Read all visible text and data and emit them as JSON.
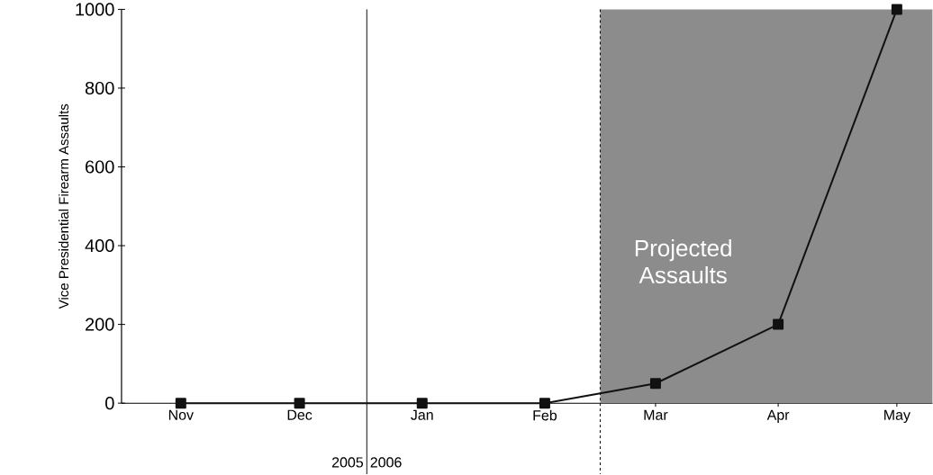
{
  "chart_data": {
    "type": "line",
    "ylabel": "Vice Presidential Firearm Assaults",
    "x": [
      "2005-11-15",
      "2005-12-15",
      "2006-01-15",
      "2006-02-15",
      "2006-03-15",
      "2006-04-15",
      "2006-05-15"
    ],
    "series": [
      {
        "color": "#111111",
        "values": [
          0,
          0,
          0,
          0,
          50,
          200,
          1000
        ]
      }
    ],
    "xlim": [
      "2005-10-31",
      "2006-05-24"
    ],
    "xticks": [
      {
        "value": "2005-11-15",
        "label": "Nov"
      },
      {
        "value": "2005-12-15",
        "label": "Dec"
      },
      {
        "value": "2006-01-15",
        "label": "Jan"
      },
      {
        "value": "2006-02-15",
        "label": "Feb"
      },
      {
        "value": "2006-03-15",
        "label": "Mar"
      },
      {
        "value": "2006-04-15",
        "label": "Apr"
      },
      {
        "value": "2006-05-15",
        "label": "May"
      }
    ],
    "ylim": [
      0,
      1000
    ],
    "yticks": [
      0,
      200,
      400,
      600,
      800,
      1000
    ],
    "marker": "square",
    "line_style": "solid",
    "grid": false,
    "ref_lines": [
      {
        "axis": "x",
        "value": "2006-01-01",
        "color": "#000000",
        "line_style": "solid"
      },
      {
        "axis": "x",
        "value": "2006-03-01",
        "color": "#000000",
        "line_style": "dashed"
      }
    ],
    "bands": [
      {
        "axis": "x",
        "from": "2006-03-01",
        "to": "2006-05-24",
        "label": "Projected Assaults",
        "color": "#8c8c8c"
      }
    ],
    "annotations": [
      "2005",
      "2006"
    ]
  }
}
